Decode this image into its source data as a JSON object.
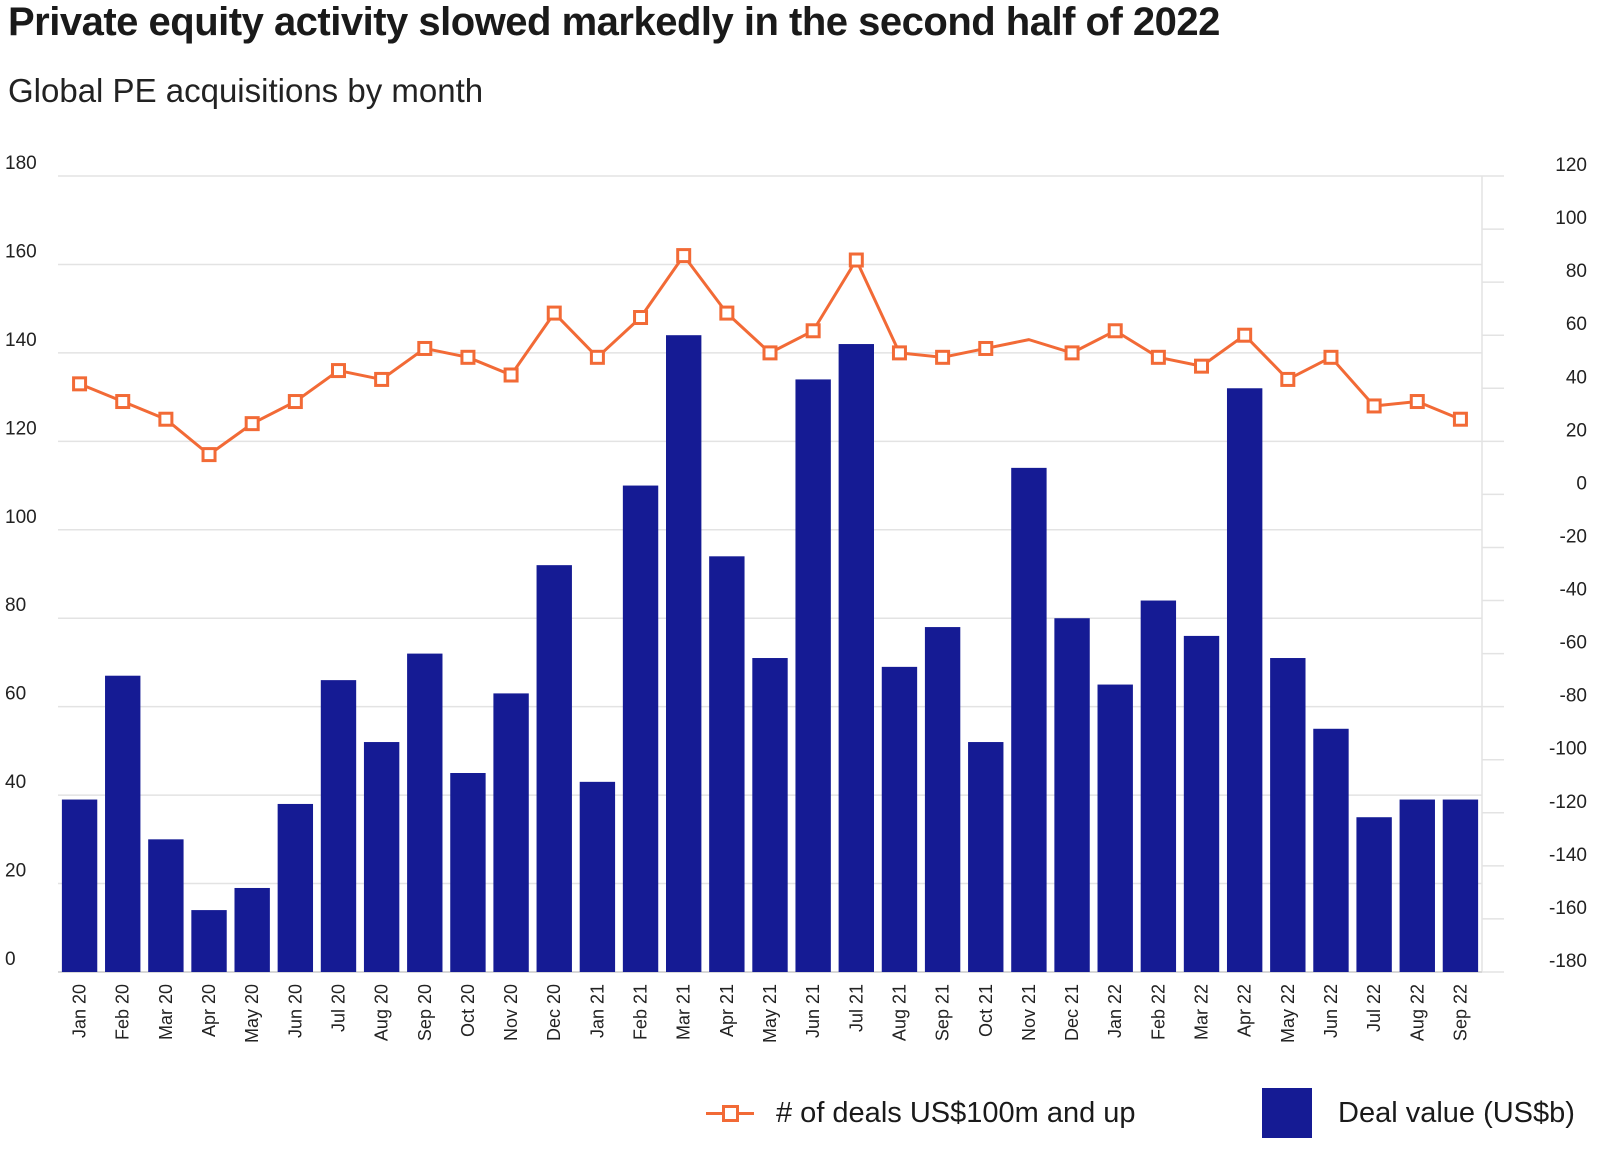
{
  "title": "Private equity activity slowed markedly in the second half of 2022",
  "subtitle": "Global PE acquisitions by month",
  "colors": {
    "bar": "#151b94",
    "line": "#f26a36",
    "grid": "#e3e3e3"
  },
  "legend": {
    "line_label": "# of deals US$100m and up",
    "bar_label": "Deal value (US$b)"
  },
  "chart_data": {
    "type": "bar",
    "title": "Private equity activity slowed markedly in the second half of 2022",
    "subtitle": "Global PE acquisitions by month",
    "categories": [
      "Jan 20",
      "Feb 20",
      "Mar 20",
      "Apr 20",
      "May 20",
      "Jun 20",
      "Jul 20",
      "Aug 20",
      "Sep 20",
      "Oct 20",
      "Nov 20",
      "Dec 20",
      "Jan 21",
      "Feb 21",
      "Mar 21",
      "Apr 21",
      "May 21",
      "Jun 21",
      "Jul 21",
      "Aug 21",
      "Sep 21",
      "Oct 21",
      "Nov 21",
      "Dec 21",
      "Jan 22",
      "Feb 22",
      "Mar 22",
      "Apr 22",
      "May 22",
      "Jun 22",
      "Jul 22",
      "Aug 22",
      "Sep 22"
    ],
    "left_axis": {
      "ylim": [
        0,
        180
      ],
      "ticks": [
        0,
        20,
        40,
        60,
        80,
        100,
        120,
        140,
        160,
        180
      ]
    },
    "right_axis": {
      "ylim": [
        -180,
        120
      ],
      "ticks": [
        -180,
        -160,
        -140,
        -120,
        -100,
        -80,
        -60,
        -40,
        -20,
        0,
        20,
        40,
        60,
        80,
        100,
        120
      ]
    },
    "grid": true,
    "legend_position": "bottom-right",
    "series": [
      {
        "name": "Deal value (US$b)",
        "type": "bar",
        "axis": "left",
        "values": [
          39,
          67,
          30,
          14,
          19,
          38,
          66,
          52,
          72,
          45,
          63,
          92,
          43,
          110,
          144,
          94,
          71,
          134,
          142,
          69,
          78,
          52,
          114,
          80,
          65,
          84,
          76,
          132,
          71,
          55,
          35,
          39,
          39
        ]
      },
      {
        "name": "# of deals US$100m and up",
        "type": "line",
        "marker": "square",
        "axis": "left",
        "values": [
          133,
          129,
          125,
          117,
          124,
          129,
          136,
          134,
          141,
          139,
          135,
          149,
          139,
          148,
          162,
          149,
          140,
          145,
          161,
          140,
          139,
          141,
          143,
          140,
          145,
          139,
          137,
          144,
          134,
          139,
          128,
          129,
          125
        ],
        "markers_shown": [
          true,
          true,
          true,
          true,
          true,
          true,
          true,
          true,
          true,
          true,
          true,
          true,
          true,
          true,
          true,
          true,
          true,
          true,
          true,
          true,
          true,
          true,
          false,
          true,
          true,
          true,
          true,
          true,
          true,
          true,
          true,
          true,
          true
        ]
      }
    ]
  }
}
